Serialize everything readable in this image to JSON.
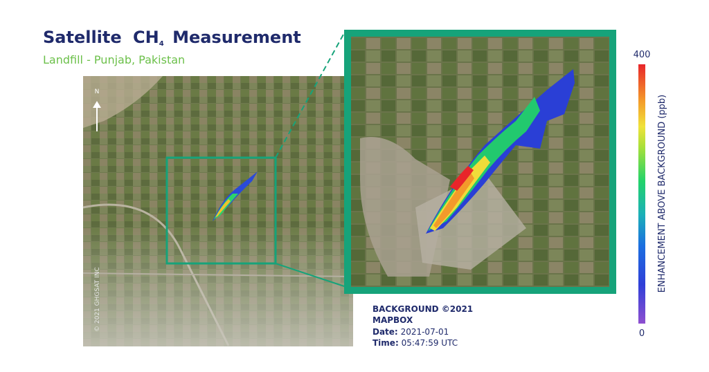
{
  "header": {
    "title": {
      "main": "Satellite",
      "gas": "CH",
      "subscript": "4",
      "rest": "Measurement"
    },
    "subtitle": "Landfill - Punjab, Pakistan"
  },
  "map": {
    "north": "N",
    "copyright": "© 2021 GHGSAT INC"
  },
  "info": {
    "background": "BACKGROUND ©2021",
    "provider": "MAPBOX",
    "date_label": "Date:",
    "date": "2021-07-01",
    "time_label": "Time:",
    "time": "05:47:59 UTC"
  },
  "colorbar": {
    "label": "ENHANCEMENT ABOVE BACKGROUND (ppb)",
    "lim": [
      0,
      400
    ],
    "ticks": [
      0,
      400
    ]
  }
}
